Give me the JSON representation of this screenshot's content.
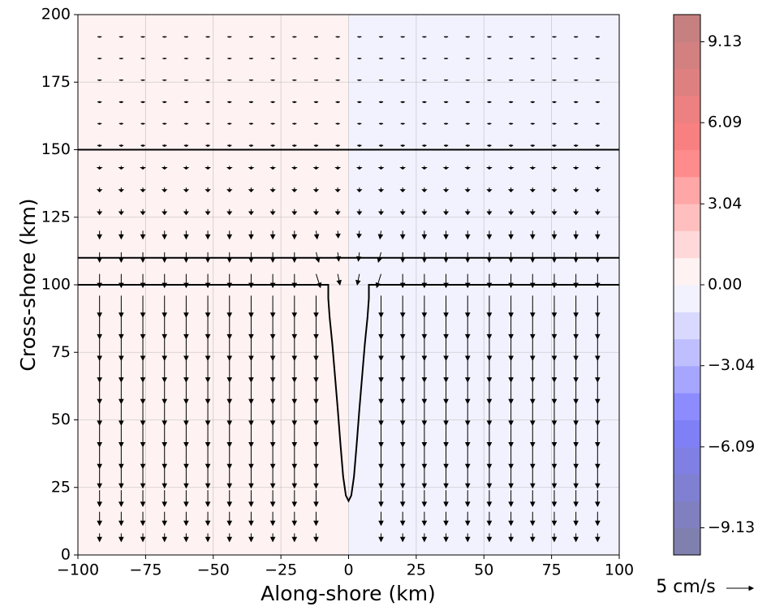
{
  "chart_data": {
    "type": "quiver",
    "xlabel": "Along-shore (km)",
    "ylabel": "Cross-shore (km)",
    "xlim": [
      -100,
      100
    ],
    "ylim": [
      0,
      200
    ],
    "xticks": [
      {
        "value": -100,
        "label": "−100"
      },
      {
        "value": -75,
        "label": "−75"
      },
      {
        "value": -50,
        "label": "−50"
      },
      {
        "value": -25,
        "label": "−25"
      },
      0,
      25,
      50,
      75,
      100
    ],
    "yticks": [
      0,
      25,
      50,
      75,
      100,
      125,
      150,
      175,
      200
    ],
    "grid": true,
    "field": [
      {
        "xlim": [
          -100,
          0
        ],
        "value": 0.5
      },
      {
        "xlim": [
          0,
          100
        ],
        "value": -0.5
      }
    ],
    "colorbar": {
      "clim": [
        -10.15,
        10.15
      ],
      "colors": [
        "#8080af",
        "#8080c1",
        "#8080d2",
        "#8080e4",
        "#8080f6",
        "#8c8cff",
        "#a6a6ff",
        "#bfbfff",
        "#d9d9ff",
        "#f2f2ff",
        "#fff2f2",
        "#ffd9d9",
        "#ffbfbf",
        "#ffa6a6",
        "#ff8c8c",
        "#f98080",
        "#ed8080",
        "#df8080",
        "#d28080",
        "#c68080"
      ],
      "ticks": [
        {
          "value": -9.13,
          "label": "−9.13"
        },
        {
          "value": -6.09,
          "label": "−6.09"
        },
        {
          "value": -3.04,
          "label": "−3.04"
        },
        {
          "value": 0,
          "label": "0.00"
        },
        3.04,
        6.09,
        9.13
      ]
    },
    "lines": [
      {
        "color": "#000000",
        "x": [
          -100,
          100
        ],
        "y": [
          150,
          150
        ]
      },
      {
        "color": "#000000",
        "x": [
          -100,
          100
        ],
        "y": [
          110,
          110
        ]
      },
      {
        "color": "#000000",
        "x": [
          -100,
          -7.5,
          -7.5,
          -7,
          -6,
          -5,
          -4,
          -3,
          -2,
          -1,
          0,
          1,
          2,
          3,
          4,
          5,
          6,
          7,
          7.5,
          7.5,
          100
        ],
        "y": [
          100,
          100,
          95,
          88,
          78,
          66,
          54,
          41,
          29,
          22,
          20,
          22,
          29,
          41,
          54,
          66,
          78,
          88,
          95,
          100,
          100
        ]
      }
    ],
    "quiver_key": {
      "value": 5,
      "label": "5 cm/s"
    },
    "arrow_color": "#000000",
    "x": [
      -92,
      -84,
      -76,
      -68,
      -60,
      -52,
      -44,
      -36,
      -28,
      -20,
      -12,
      -4,
      4,
      12,
      20,
      28,
      36,
      44,
      52,
      60,
      68,
      76,
      84,
      92
    ],
    "y": [
      8,
      16,
      24,
      32,
      40,
      48,
      56,
      64,
      72,
      80,
      88,
      96,
      104,
      112,
      120,
      128,
      136,
      144,
      152,
      160,
      168,
      176,
      184,
      192
    ],
    "u": [
      [
        0,
        0,
        0,
        0,
        0,
        0,
        0,
        0,
        0,
        0,
        0,
        null,
        null,
        0,
        0,
        0,
        0,
        0,
        0,
        0,
        0,
        0,
        0,
        0
      ],
      [
        0,
        0,
        0,
        0,
        0,
        0,
        0,
        0,
        0,
        0,
        0,
        null,
        null,
        0,
        0,
        0,
        0,
        0,
        0,
        0,
        0,
        0,
        0,
        0
      ],
      [
        0,
        0,
        0,
        0,
        0,
        0,
        0,
        0,
        0,
        0,
        0,
        null,
        null,
        0,
        0,
        0,
        0,
        0,
        0,
        0,
        0,
        0,
        0,
        0
      ],
      [
        0,
        0,
        0,
        0,
        0,
        0,
        0,
        0,
        0,
        0,
        0,
        null,
        null,
        0,
        0,
        0,
        0,
        0,
        0,
        0,
        0,
        0,
        0,
        0
      ],
      [
        0,
        0,
        0,
        0,
        0,
        0,
        0,
        0,
        0,
        0,
        0,
        null,
        null,
        0,
        0,
        0,
        0,
        0,
        0,
        0,
        0,
        0,
        0,
        0
      ],
      [
        0,
        0,
        0,
        0,
        0,
        0,
        0,
        0,
        0,
        0,
        0,
        null,
        null,
        0,
        0,
        0,
        0,
        0,
        0,
        0,
        0,
        0,
        0,
        0
      ],
      [
        0,
        0,
        0,
        0,
        0,
        0,
        0,
        0,
        0,
        0,
        0,
        null,
        null,
        0,
        0,
        0,
        0,
        0,
        0,
        0,
        0,
        0,
        0,
        0
      ],
      [
        0,
        0,
        0,
        0,
        0,
        0,
        0,
        0,
        0,
        0,
        0,
        null,
        null,
        0,
        0,
        0,
        0,
        0,
        0,
        0,
        0,
        0,
        0,
        0
      ],
      [
        0,
        0,
        0,
        0,
        0,
        0,
        0,
        0,
        0,
        0,
        0,
        null,
        null,
        0,
        0,
        0,
        0,
        0,
        0,
        0,
        0,
        0,
        0,
        0
      ],
      [
        0,
        0,
        0,
        0,
        0,
        0,
        0,
        0,
        0,
        0,
        0,
        null,
        null,
        0,
        0,
        0,
        0,
        0,
        0,
        0,
        0,
        0,
        0,
        0
      ],
      [
        0,
        0,
        0,
        0,
        0,
        0,
        0,
        0,
        0,
        0,
        0,
        null,
        null,
        0,
        0,
        0,
        0,
        0,
        0,
        0,
        0,
        0,
        0,
        0
      ],
      [
        0,
        0,
        0,
        0,
        0,
        0,
        0,
        0,
        0,
        0,
        0,
        null,
        null,
        0,
        0,
        0,
        0,
        0,
        0,
        0,
        0,
        0,
        0,
        0
      ],
      [
        0,
        0,
        0,
        0,
        0,
        0,
        0,
        0,
        0,
        0,
        0.8,
        0.4,
        -0.4,
        -0.8,
        0,
        0,
        0,
        0,
        0,
        0,
        0,
        0,
        0,
        0
      ],
      [
        0,
        0,
        0,
        0,
        0,
        0,
        0,
        0,
        0,
        0,
        0.5,
        0.2,
        -0.2,
        -0.5,
        0,
        0,
        0,
        0,
        0,
        0,
        0,
        0,
        0,
        0
      ],
      [
        0,
        0,
        0,
        0,
        0,
        0,
        0,
        0,
        0,
        0,
        0.2,
        0.1,
        -0.1,
        -0.2,
        0,
        0,
        0,
        0,
        0,
        0,
        0,
        0,
        0,
        0
      ],
      [
        0,
        0,
        0,
        0,
        0,
        0,
        0,
        0,
        0,
        0,
        0,
        0,
        0,
        0,
        0,
        0,
        0,
        0,
        0,
        0,
        0,
        0,
        0,
        0
      ],
      [
        0,
        0,
        0,
        0,
        0,
        0,
        0,
        0,
        0,
        0,
        0,
        0,
        0,
        0,
        0,
        0,
        0,
        0,
        0,
        0,
        0,
        0,
        0,
        0
      ],
      [
        0,
        0,
        0,
        0,
        0,
        0,
        0,
        0,
        0,
        0,
        0,
        0,
        0,
        0,
        0,
        0,
        0,
        0,
        0,
        0,
        0,
        0,
        0,
        0
      ],
      [
        0,
        0,
        0,
        0,
        0,
        0,
        0,
        0,
        0,
        0,
        0,
        0,
        0,
        0,
        0,
        0,
        0,
        0,
        0,
        0,
        0,
        0,
        0,
        0
      ],
      [
        0,
        0,
        0,
        0,
        0,
        0,
        0,
        0,
        0,
        0,
        0,
        0,
        0,
        0,
        0,
        0,
        0,
        0,
        0,
        0,
        0,
        0,
        0,
        0
      ],
      [
        0,
        0,
        0,
        0,
        0,
        0,
        0,
        0,
        0,
        0,
        0,
        0,
        0,
        0,
        0,
        0,
        0,
        0,
        0,
        0,
        0,
        0,
        0,
        0
      ],
      [
        0,
        0,
        0,
        0,
        0,
        0,
        0,
        0,
        0,
        0,
        0,
        0,
        0,
        0,
        0,
        0,
        0,
        0,
        0,
        0,
        0,
        0,
        0,
        0
      ],
      [
        0,
        0,
        0,
        0,
        0,
        0,
        0,
        0,
        0,
        0,
        0,
        0,
        0,
        0,
        0,
        0,
        0,
        0,
        0,
        0,
        0,
        0,
        0,
        0
      ],
      [
        0,
        0,
        0,
        0,
        0,
        0,
        0,
        0,
        0,
        0,
        0,
        0,
        0,
        0,
        0,
        0,
        0,
        0,
        0,
        0,
        0,
        0,
        0,
        0
      ]
    ],
    "v": [
      [
        -1.5,
        -1.5,
        -1.5,
        -1.5,
        -1.5,
        -1.5,
        -1.5,
        -1.5,
        -1.5,
        -1.5,
        -1.5,
        null,
        null,
        -1.5,
        -1.5,
        -1.5,
        -1.5,
        -1.5,
        -1.5,
        -1.5,
        -1.5,
        -1.5,
        -1.5,
        -1.5
      ],
      [
        -2.5,
        -2.5,
        -2.5,
        -2.5,
        -2.5,
        -2.5,
        -2.5,
        -2.5,
        -2.5,
        -2.5,
        -2.5,
        null,
        null,
        -2.5,
        -2.5,
        -2.5,
        -2.5,
        -2.5,
        -2.5,
        -2.5,
        -2.5,
        -2.5,
        -2.5,
        -2.5
      ],
      [
        -3,
        -3,
        -3,
        -3,
        -3,
        -3,
        -3,
        -3,
        -3,
        -3,
        -3,
        null,
        null,
        -3,
        -3,
        -3,
        -3,
        -3,
        -3,
        -3,
        -3,
        -3,
        -3,
        -3
      ],
      [
        -3.6,
        -3.6,
        -3.6,
        -3.6,
        -3.6,
        -3.6,
        -3.6,
        -3.6,
        -3.6,
        -3.6,
        -3.6,
        null,
        null,
        -3.6,
        -3.6,
        -3.6,
        -3.6,
        -3.6,
        -3.6,
        -3.6,
        -3.6,
        -3.6,
        -3.6,
        -3.6
      ],
      [
        -4,
        -4,
        -4,
        -4,
        -4,
        -4,
        -4,
        -4,
        -4,
        -4,
        -4,
        null,
        null,
        -4,
        -4,
        -4,
        -4,
        -4,
        -4,
        -4,
        -4,
        -4,
        -4,
        -4
      ],
      [
        -4,
        -4,
        -4,
        -4,
        -4,
        -4,
        -4,
        -4,
        -4,
        -4,
        -4,
        null,
        null,
        -4,
        -4,
        -4,
        -4,
        -4,
        -4,
        -4,
        -4,
        -4,
        -4,
        -4
      ],
      [
        -4,
        -4,
        -4,
        -4,
        -4,
        -4,
        -4,
        -4,
        -4,
        -4,
        -4,
        null,
        null,
        -4,
        -4,
        -4,
        -4,
        -4,
        -4,
        -4,
        -4,
        -4,
        -4,
        -4
      ],
      [
        -4,
        -4,
        -4,
        -4,
        -4,
        -4,
        -4,
        -4,
        -4,
        -4,
        -4,
        null,
        null,
        -4,
        -4,
        -4,
        -4,
        -4,
        -4,
        -4,
        -4,
        -4,
        -4,
        -4
      ],
      [
        -4,
        -4,
        -4,
        -4,
        -4,
        -4,
        -4,
        -4,
        -4,
        -4,
        -4,
        null,
        null,
        -4,
        -4,
        -4,
        -4,
        -4,
        -4,
        -4,
        -4,
        -4,
        -4,
        -4
      ],
      [
        -4,
        -4,
        -4,
        -4,
        -4,
        -4,
        -4,
        -4,
        -4,
        -4,
        -4,
        null,
        null,
        -4,
        -4,
        -4,
        -4,
        -4,
        -4,
        -4,
        -4,
        -4,
        -4,
        -4
      ],
      [
        -4,
        -4,
        -4,
        -4,
        -4,
        -4,
        -4,
        -4,
        -4,
        -4,
        -4,
        null,
        null,
        -4,
        -4,
        -4,
        -4,
        -4,
        -4,
        -4,
        -4,
        -4,
        -4,
        -4
      ],
      [
        -4,
        -4,
        -4,
        -4,
        -4,
        -4,
        -4,
        -4,
        -4,
        -4,
        -4,
        null,
        null,
        -4,
        -4,
        -4,
        -4,
        -4,
        -4,
        -4,
        -4,
        -4,
        -4,
        -4
      ],
      [
        -2.5,
        -2.5,
        -2.5,
        -2.5,
        -2.5,
        -2.5,
        -2.5,
        -2.5,
        -2.5,
        -2.5,
        -2.5,
        -2,
        -2,
        -2.5,
        -2.5,
        -2.5,
        -2.5,
        -2.5,
        -2.5,
        -2.5,
        -2.5,
        -2.5,
        -2.5,
        -2.5
      ],
      [
        -1.8,
        -1.8,
        -1.8,
        -1.8,
        -1.8,
        -1.8,
        -1.8,
        -1.8,
        -1.8,
        -1.8,
        -1.8,
        -1.6,
        -1.6,
        -1.8,
        -1.8,
        -1.8,
        -1.8,
        -1.8,
        -1.8,
        -1.8,
        -1.8,
        -1.8,
        -1.8,
        -1.8
      ],
      [
        -1.5,
        -1.5,
        -1.5,
        -1.5,
        -1.5,
        -1.5,
        -1.5,
        -1.5,
        -1.5,
        -1.5,
        -1.5,
        -1.3,
        -1.3,
        -1.5,
        -1.5,
        -1.5,
        -1.5,
        -1.5,
        -1.5,
        -1.5,
        -1.5,
        -1.5,
        -1.5,
        -1.5
      ],
      [
        -1,
        -1,
        -1,
        -1,
        -1,
        -1,
        -1,
        -1,
        -1,
        -1,
        -1,
        -1,
        -1,
        -1,
        -1,
        -1,
        -1,
        -1,
        -1,
        -1,
        -1,
        -1,
        -1,
        -1
      ],
      [
        -0.8,
        -0.8,
        -0.8,
        -0.8,
        -0.8,
        -0.8,
        -0.8,
        -0.8,
        -0.8,
        -0.8,
        -0.8,
        -0.8,
        -0.8,
        -0.8,
        -0.8,
        -0.8,
        -0.8,
        -0.8,
        -0.8,
        -0.8,
        -0.8,
        -0.8,
        -0.8,
        -0.8
      ],
      [
        -0.6,
        -0.6,
        -0.6,
        -0.6,
        -0.6,
        -0.6,
        -0.6,
        -0.6,
        -0.6,
        -0.6,
        -0.6,
        -0.6,
        -0.6,
        -0.6,
        -0.6,
        -0.6,
        -0.6,
        -0.6,
        -0.6,
        -0.6,
        -0.6,
        -0.6,
        -0.6,
        -0.6
      ],
      [
        -0.4,
        -0.4,
        -0.4,
        -0.4,
        -0.4,
        -0.4,
        -0.4,
        -0.4,
        -0.4,
        -0.4,
        -0.4,
        -0.4,
        -0.4,
        -0.4,
        -0.4,
        -0.4,
        -0.4,
        -0.4,
        -0.4,
        -0.4,
        -0.4,
        -0.4,
        -0.4,
        -0.4
      ],
      [
        -0.3,
        -0.3,
        -0.3,
        -0.3,
        -0.3,
        -0.3,
        -0.3,
        -0.3,
        -0.3,
        -0.3,
        -0.3,
        -0.3,
        -0.3,
        -0.3,
        -0.3,
        -0.3,
        -0.3,
        -0.3,
        -0.3,
        -0.3,
        -0.3,
        -0.3,
        -0.3,
        -0.3
      ],
      [
        -0.3,
        -0.3,
        -0.3,
        -0.3,
        -0.3,
        -0.3,
        -0.3,
        -0.3,
        -0.3,
        -0.3,
        -0.3,
        -0.3,
        -0.3,
        -0.3,
        -0.3,
        -0.3,
        -0.3,
        -0.3,
        -0.3,
        -0.3,
        -0.3,
        -0.3,
        -0.3,
        -0.3
      ],
      [
        -0.2,
        -0.2,
        -0.2,
        -0.2,
        -0.2,
        -0.2,
        -0.2,
        -0.2,
        -0.2,
        -0.2,
        -0.2,
        -0.2,
        -0.2,
        -0.2,
        -0.2,
        -0.2,
        -0.2,
        -0.2,
        -0.2,
        -0.2,
        -0.2,
        -0.2,
        -0.2,
        -0.2
      ],
      [
        -0.2,
        -0.2,
        -0.2,
        -0.2,
        -0.2,
        -0.2,
        -0.2,
        -0.2,
        -0.2,
        -0.2,
        -0.2,
        -0.2,
        -0.2,
        -0.2,
        -0.2,
        -0.2,
        -0.2,
        -0.2,
        -0.2,
        -0.2,
        -0.2,
        -0.2,
        -0.2,
        -0.2
      ],
      [
        -0.2,
        -0.2,
        -0.2,
        -0.2,
        -0.2,
        -0.2,
        -0.2,
        -0.2,
        -0.2,
        -0.2,
        -0.2,
        -0.2,
        -0.2,
        -0.2,
        -0.2,
        -0.2,
        -0.2,
        -0.2,
        -0.2,
        -0.2,
        -0.2,
        -0.2,
        -0.2,
        -0.2
      ]
    ]
  }
}
